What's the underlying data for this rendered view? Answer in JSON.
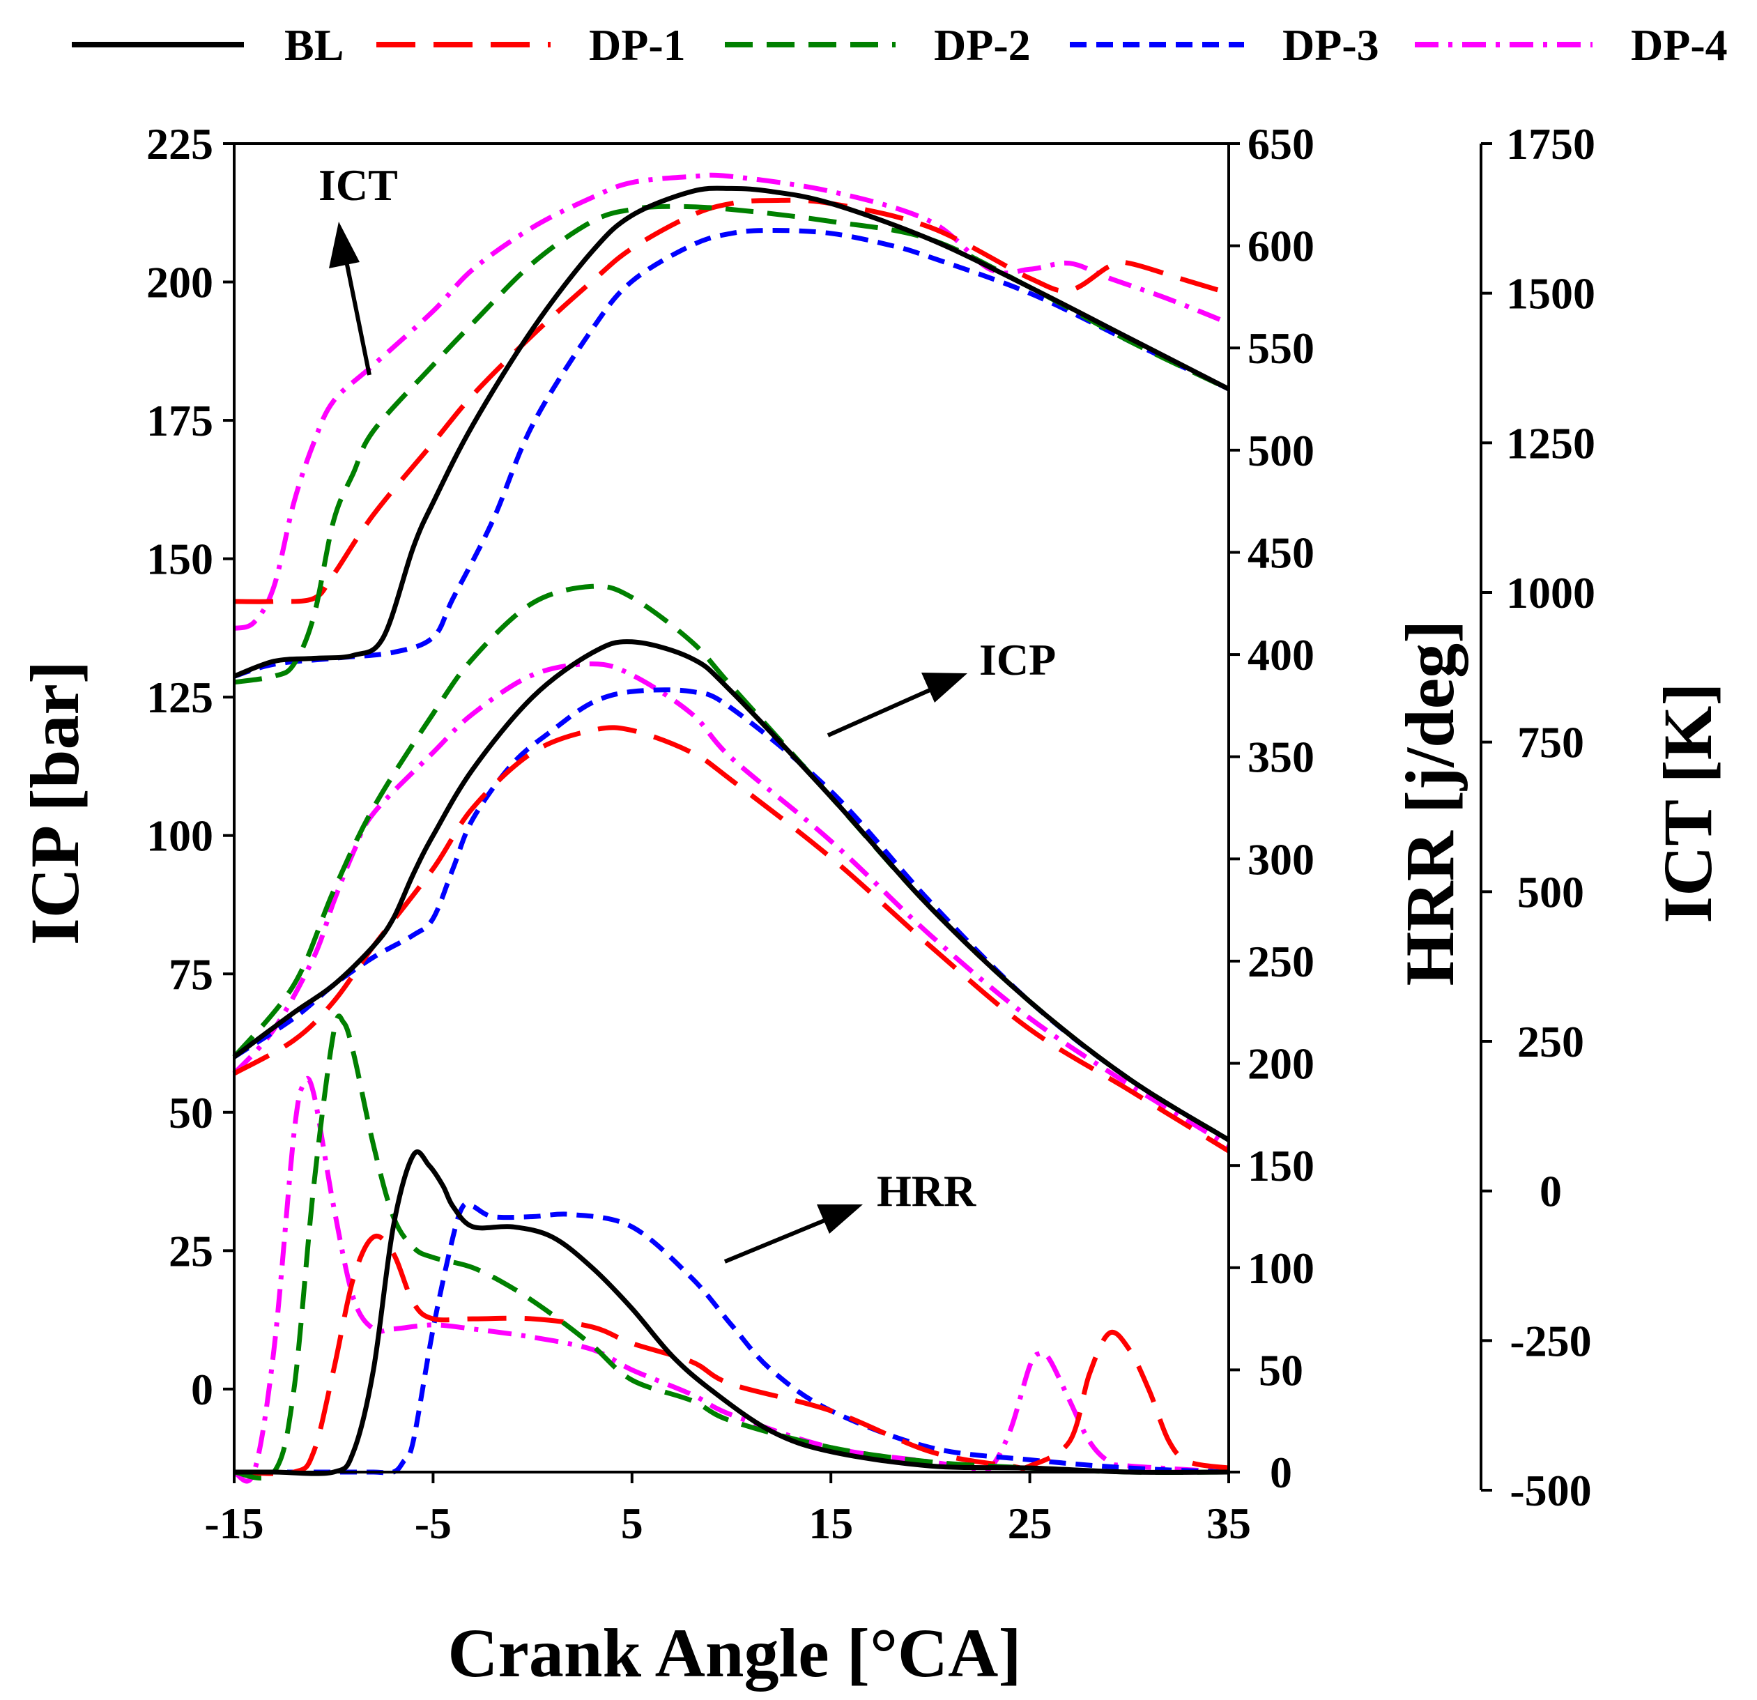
{
  "chart_data": {
    "type": "line",
    "xlabel": "Crank Angle [°CA]",
    "xlim": [
      -15,
      35
    ],
    "xticks": [
      -15,
      -5,
      5,
      15,
      25,
      35
    ],
    "axes": {
      "icp": {
        "label": "ICP [bar]",
        "lim": [
          -15,
          225
        ],
        "ticks": [
          0,
          25,
          50,
          75,
          100,
          125,
          150,
          175,
          200,
          225
        ]
      },
      "hrr": {
        "label": "HRR [j/deg]",
        "lim": [
          0,
          650
        ],
        "ticks": [
          0,
          50,
          100,
          150,
          200,
          250,
          300,
          350,
          400,
          450,
          500,
          550,
          600,
          650
        ]
      },
      "ict": {
        "label": "ICT [K]",
        "lim": [
          -500,
          1750
        ],
        "ticks": [
          -500,
          -250,
          0,
          250,
          500,
          750,
          1000,
          1250,
          1500,
          1750
        ]
      }
    },
    "colors": {
      "BL": "#000000",
      "DP-1": "#ff0000",
      "DP-2": "#008000",
      "DP-3": "#0000ff",
      "DP-4": "#ff00ff"
    },
    "dashes": {
      "BL": "",
      "DP-1": "56,26",
      "DP-2": "40,20",
      "DP-3": "24,14",
      "DP-4": "34,14,6,14"
    },
    "legend": [
      "BL",
      "DP-1",
      "DP-2",
      "DP-3",
      "DP-4"
    ],
    "annotations": {
      "ict": "ICT",
      "icp": "ICP",
      "hrr": "HRR"
    },
    "series": [
      {
        "group": "ICP",
        "axis": "icp",
        "name": "BL",
        "x": [
          -15,
          -12,
          -10,
          -8,
          -7,
          -6,
          -5,
          -3,
          0,
          3,
          5,
          8,
          10,
          15,
          20,
          25,
          30,
          35
        ],
        "y": [
          60,
          68,
          73,
          80,
          85,
          93,
          100,
          112,
          125,
          133,
          135,
          132,
          126,
          107,
          87,
          70,
          56,
          45
        ]
      },
      {
        "group": "ICP",
        "axis": "icp",
        "name": "DP-1",
        "x": [
          -15,
          -12,
          -10,
          -8,
          -5,
          -3,
          0,
          3,
          5,
          8,
          10,
          15,
          20,
          25,
          30,
          35
        ],
        "y": [
          57,
          63,
          70,
          80,
          94,
          105,
          115,
          119,
          119,
          115,
          110,
          96,
          80,
          65,
          54,
          43
        ]
      },
      {
        "group": "ICP",
        "axis": "icp",
        "name": "DP-2",
        "x": [
          -15,
          -12,
          -10,
          -8,
          -5,
          -3,
          0,
          3,
          5,
          8,
          10,
          15,
          20,
          25,
          30,
          35
        ],
        "y": [
          60,
          73,
          90,
          105,
          122,
          132,
          142,
          145,
          143,
          135,
          127,
          107,
          87,
          70,
          56,
          45
        ]
      },
      {
        "group": "ICP",
        "axis": "icp",
        "name": "DP-3",
        "x": [
          -15,
          -12,
          -10,
          -8,
          -6,
          -5,
          -4,
          -3,
          -1,
          1,
          3,
          5,
          8,
          10,
          15,
          20,
          25,
          30,
          35
        ],
        "y": [
          60,
          67,
          73,
          78,
          82,
          85,
          94,
          103,
          113,
          119,
          124,
          126,
          126,
          123,
          108,
          88,
          70,
          56,
          45
        ]
      },
      {
        "group": "ICP",
        "axis": "icp",
        "name": "DP-4",
        "x": [
          -15,
          -13,
          -11,
          -10,
          -9,
          -8,
          -5,
          -3,
          0,
          3,
          5,
          8,
          10,
          15,
          20,
          25,
          30,
          35
        ],
        "y": [
          57,
          65,
          78,
          88,
          97,
          104,
          115,
          122,
          129,
          131,
          129,
          122,
          114,
          99,
          82,
          67,
          55,
          44
        ]
      },
      {
        "group": "ICT",
        "axis": "ict",
        "name": "BL",
        "x": [
          -15,
          -13,
          -11,
          -9,
          -7.5,
          -6,
          -5,
          -3,
          0,
          3,
          5,
          8,
          10,
          12,
          15,
          20,
          25,
          30,
          35
        ],
        "y": [
          860,
          885,
          890,
          895,
          925,
          1075,
          1150,
          1280,
          1440,
          1570,
          1630,
          1670,
          1675,
          1670,
          1650,
          1590,
          1510,
          1425,
          1340
        ]
      },
      {
        "group": "ICT",
        "axis": "ict",
        "name": "DP-1",
        "x": [
          -15,
          -13,
          -11,
          -10,
          -8,
          -5,
          -3,
          0,
          3,
          5,
          8,
          10,
          12,
          15,
          20,
          25,
          27,
          29,
          30,
          33,
          35
        ],
        "y": [
          985,
          985,
          990,
          1030,
          1130,
          1250,
          1330,
          1430,
          1520,
          1575,
          1630,
          1650,
          1655,
          1650,
          1610,
          1525,
          1505,
          1545,
          1550,
          1520,
          1500
        ]
      },
      {
        "group": "ICT",
        "axis": "ict",
        "name": "DP-2",
        "x": [
          -15,
          -13,
          -12,
          -11,
          -10,
          -9,
          -8,
          -5,
          -3,
          0,
          3,
          5,
          7,
          10,
          15,
          20,
          25,
          30,
          35
        ],
        "y": [
          850,
          860,
          880,
          960,
          1120,
          1200,
          1270,
          1380,
          1450,
          1550,
          1620,
          1640,
          1645,
          1640,
          1620,
          1590,
          1510,
          1420,
          1340
        ]
      },
      {
        "group": "ICT",
        "axis": "ict",
        "name": "DP-3",
        "x": [
          -15,
          -13,
          -10,
          -7,
          -5,
          -4,
          -2,
          0,
          3,
          5,
          8,
          10,
          12,
          15,
          18,
          20,
          25,
          30,
          35
        ],
        "y": [
          860,
          880,
          890,
          900,
          925,
          990,
          1120,
          1280,
          1440,
          1520,
          1580,
          1600,
          1605,
          1600,
          1580,
          1560,
          1500,
          1420,
          1340
        ]
      },
      {
        "group": "ICT",
        "axis": "ict",
        "name": "DP-4",
        "x": [
          -15,
          -14,
          -13,
          -12,
          -11,
          -10,
          -8,
          -5,
          -3,
          0,
          3,
          5,
          8,
          10,
          15,
          20,
          23,
          25,
          27,
          29,
          32,
          35
        ],
        "y": [
          940,
          950,
          1010,
          1150,
          1250,
          1320,
          1380,
          1470,
          1540,
          1610,
          1660,
          1685,
          1695,
          1695,
          1670,
          1620,
          1540,
          1540,
          1550,
          1525,
          1490,
          1450
        ]
      },
      {
        "group": "HRR",
        "axis": "hrr",
        "name": "BL",
        "x": [
          -15,
          -13,
          -10,
          -9,
          -8,
          -7,
          -6,
          -5.2,
          -4.5,
          -4,
          -3,
          -1,
          1,
          3,
          5,
          7,
          9,
          12,
          15,
          20,
          25,
          30,
          35
        ],
        "y": [
          0,
          0,
          0,
          10,
          50,
          120,
          155,
          150,
          140,
          130,
          120,
          120,
          115,
          100,
          80,
          57,
          40,
          20,
          10,
          3,
          2,
          0,
          0
        ]
      },
      {
        "group": "HRR",
        "axis": "hrr",
        "name": "DP-1",
        "x": [
          -15,
          -12,
          -11,
          -10,
          -9,
          -8,
          -7,
          -6,
          -5,
          -3,
          0,
          3,
          5,
          8,
          10,
          15,
          20,
          24,
          25,
          27,
          28,
          29,
          30,
          31,
          32,
          33,
          35
        ],
        "y": [
          0,
          0,
          10,
          50,
          95,
          115,
          107,
          83,
          75,
          75,
          75,
          71,
          63,
          54,
          43,
          30,
          10,
          3,
          3,
          15,
          48,
          68,
          60,
          40,
          15,
          5,
          2
        ]
      },
      {
        "group": "HRR",
        "axis": "hrr",
        "name": "DP-2",
        "x": [
          -15,
          -13,
          -12,
          -11,
          -10,
          -9.5,
          -9,
          -8,
          -7,
          -6,
          -5,
          -3,
          -1,
          1,
          3,
          5,
          8,
          10,
          15,
          20,
          25,
          30,
          35
        ],
        "y": [
          0,
          0,
          40,
          140,
          215,
          220,
          205,
          160,
          125,
          110,
          105,
          100,
          90,
          77,
          62,
          45,
          35,
          25,
          12,
          5,
          2,
          0,
          0
        ]
      },
      {
        "group": "HRR",
        "axis": "hrr",
        "name": "DP-3",
        "x": [
          -15,
          -10,
          -9,
          -8,
          -7,
          -6.5,
          -6,
          -5,
          -4,
          -3.5,
          -3,
          -2,
          0,
          2,
          5,
          8,
          10,
          12,
          15,
          20,
          25,
          30,
          35
        ],
        "y": [
          0,
          0,
          0,
          0,
          0,
          5,
          15,
          70,
          115,
          130,
          130,
          125,
          125,
          126,
          120,
          95,
          72,
          50,
          30,
          12,
          6,
          2,
          0
        ]
      },
      {
        "group": "HRR",
        "axis": "hrr",
        "name": "DP-4",
        "x": [
          -15,
          -14,
          -13,
          -12,
          -11.5,
          -11,
          -10,
          -9,
          -8,
          -7,
          -5,
          -3,
          0,
          3,
          5,
          8,
          10,
          15,
          20,
          22,
          23,
          24,
          25,
          25.5,
          26,
          27,
          28,
          29,
          30,
          35
        ],
        "y": [
          0,
          0,
          60,
          165,
          190,
          185,
          130,
          85,
          70,
          70,
          72,
          70,
          66,
          60,
          50,
          38,
          28,
          12,
          5,
          2,
          2,
          20,
          52,
          58,
          55,
          35,
          15,
          5,
          3,
          0
        ]
      }
    ]
  }
}
